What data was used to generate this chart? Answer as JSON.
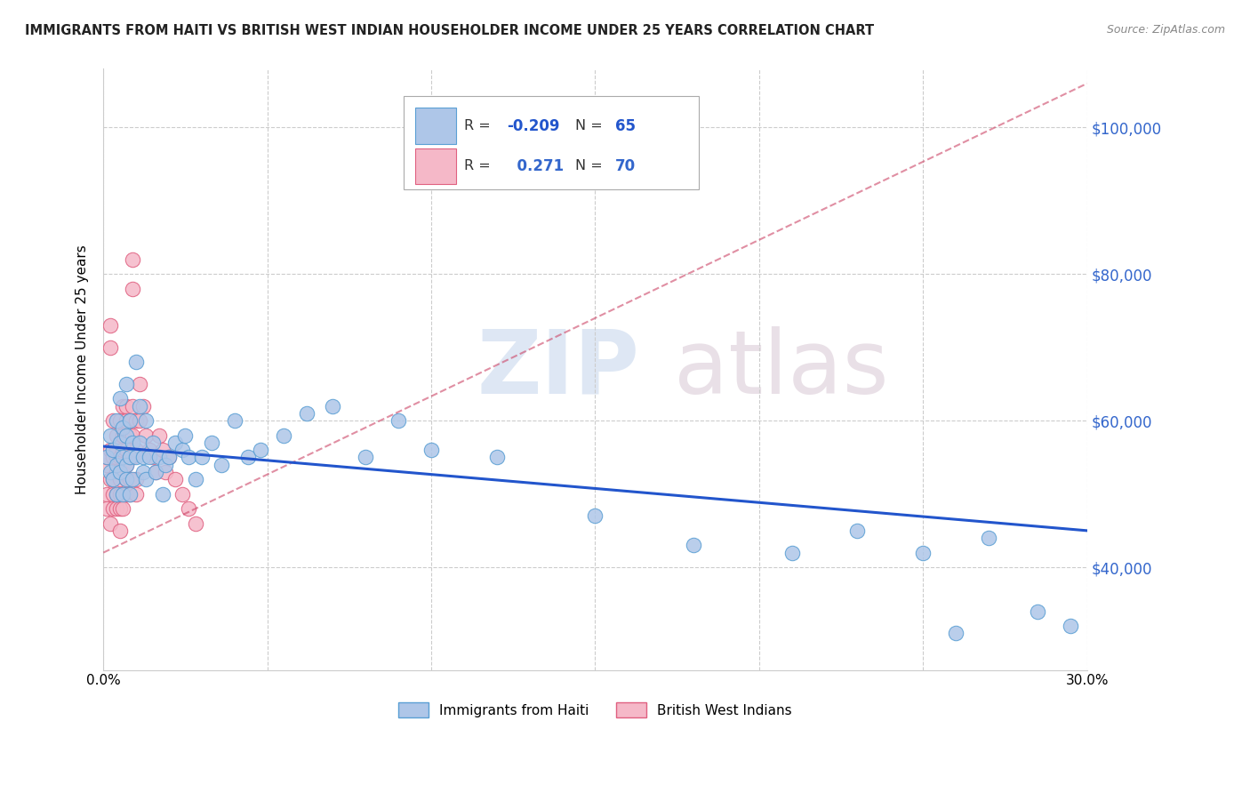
{
  "title": "IMMIGRANTS FROM HAITI VS BRITISH WEST INDIAN HOUSEHOLDER INCOME UNDER 25 YEARS CORRELATION CHART",
  "source": "Source: ZipAtlas.com",
  "ylabel": "Householder Income Under 25 years",
  "ytick_labels": [
    "$40,000",
    "$60,000",
    "$80,000",
    "$100,000"
  ],
  "ytick_values": [
    40000,
    60000,
    80000,
    100000
  ],
  "xlim": [
    0.0,
    0.3
  ],
  "ylim": [
    26000,
    108000
  ],
  "legend_haiti_R": "-0.209",
  "legend_haiti_N": "65",
  "legend_bwi_R": "0.271",
  "legend_bwi_N": "70",
  "haiti_color": "#aec6e8",
  "haiti_edge": "#5a9fd4",
  "bwi_color": "#f5b8c8",
  "bwi_edge": "#e06080",
  "trendline_haiti_color": "#2255cc",
  "trendline_bwi_color": "#cc4466",
  "haiti_x": [
    0.001,
    0.002,
    0.002,
    0.003,
    0.003,
    0.004,
    0.004,
    0.004,
    0.005,
    0.005,
    0.005,
    0.006,
    0.006,
    0.006,
    0.007,
    0.007,
    0.007,
    0.007,
    0.008,
    0.008,
    0.008,
    0.009,
    0.009,
    0.01,
    0.01,
    0.011,
    0.011,
    0.012,
    0.012,
    0.013,
    0.013,
    0.014,
    0.015,
    0.016,
    0.017,
    0.018,
    0.019,
    0.02,
    0.022,
    0.024,
    0.025,
    0.026,
    0.028,
    0.03,
    0.033,
    0.036,
    0.04,
    0.044,
    0.048,
    0.055,
    0.062,
    0.07,
    0.08,
    0.09,
    0.1,
    0.12,
    0.15,
    0.18,
    0.21,
    0.23,
    0.25,
    0.26,
    0.27,
    0.285,
    0.295
  ],
  "haiti_y": [
    55000,
    53000,
    58000,
    52000,
    56000,
    50000,
    54000,
    60000,
    57000,
    63000,
    53000,
    59000,
    55000,
    50000,
    65000,
    58000,
    54000,
    52000,
    60000,
    55000,
    50000,
    57000,
    52000,
    68000,
    55000,
    62000,
    57000,
    55000,
    53000,
    60000,
    52000,
    55000,
    57000,
    53000,
    55000,
    50000,
    54000,
    55000,
    57000,
    56000,
    58000,
    55000,
    52000,
    55000,
    57000,
    54000,
    60000,
    55000,
    56000,
    58000,
    61000,
    62000,
    55000,
    60000,
    56000,
    55000,
    47000,
    43000,
    42000,
    45000,
    42000,
    31000,
    44000,
    34000,
    32000
  ],
  "bwi_x": [
    0.001,
    0.001,
    0.001,
    0.001,
    0.002,
    0.002,
    0.002,
    0.002,
    0.002,
    0.003,
    0.003,
    0.003,
    0.003,
    0.003,
    0.003,
    0.004,
    0.004,
    0.004,
    0.004,
    0.004,
    0.004,
    0.005,
    0.005,
    0.005,
    0.005,
    0.005,
    0.005,
    0.005,
    0.006,
    0.006,
    0.006,
    0.006,
    0.006,
    0.006,
    0.007,
    0.007,
    0.007,
    0.007,
    0.007,
    0.007,
    0.007,
    0.008,
    0.008,
    0.008,
    0.008,
    0.008,
    0.009,
    0.009,
    0.009,
    0.009,
    0.009,
    0.01,
    0.01,
    0.01,
    0.01,
    0.011,
    0.011,
    0.012,
    0.013,
    0.014,
    0.015,
    0.016,
    0.017,
    0.018,
    0.019,
    0.02,
    0.022,
    0.024,
    0.026,
    0.028
  ],
  "bwi_y": [
    54000,
    55000,
    50000,
    48000,
    73000,
    70000,
    52000,
    56000,
    46000,
    60000,
    56000,
    52000,
    48000,
    55000,
    50000,
    55000,
    58000,
    53000,
    50000,
    56000,
    48000,
    57000,
    60000,
    55000,
    52000,
    50000,
    48000,
    45000,
    62000,
    58000,
    56000,
    53000,
    50000,
    48000,
    62000,
    60000,
    58000,
    56000,
    54000,
    52000,
    50000,
    60000,
    58000,
    55000,
    52000,
    50000,
    82000,
    78000,
    62000,
    58000,
    55000,
    60000,
    56000,
    52000,
    50000,
    65000,
    60000,
    62000,
    58000,
    56000,
    55000,
    53000,
    58000,
    56000,
    53000,
    55000,
    52000,
    50000,
    48000,
    46000
  ],
  "bwi_trendline_x0": 0.0,
  "bwi_trendline_x1": 0.3,
  "bwi_trendline_y0": 42000,
  "bwi_trendline_y1": 106000,
  "haiti_trendline_x0": 0.0,
  "haiti_trendline_x1": 0.3,
  "haiti_trendline_y0": 56500,
  "haiti_trendline_y1": 45000
}
